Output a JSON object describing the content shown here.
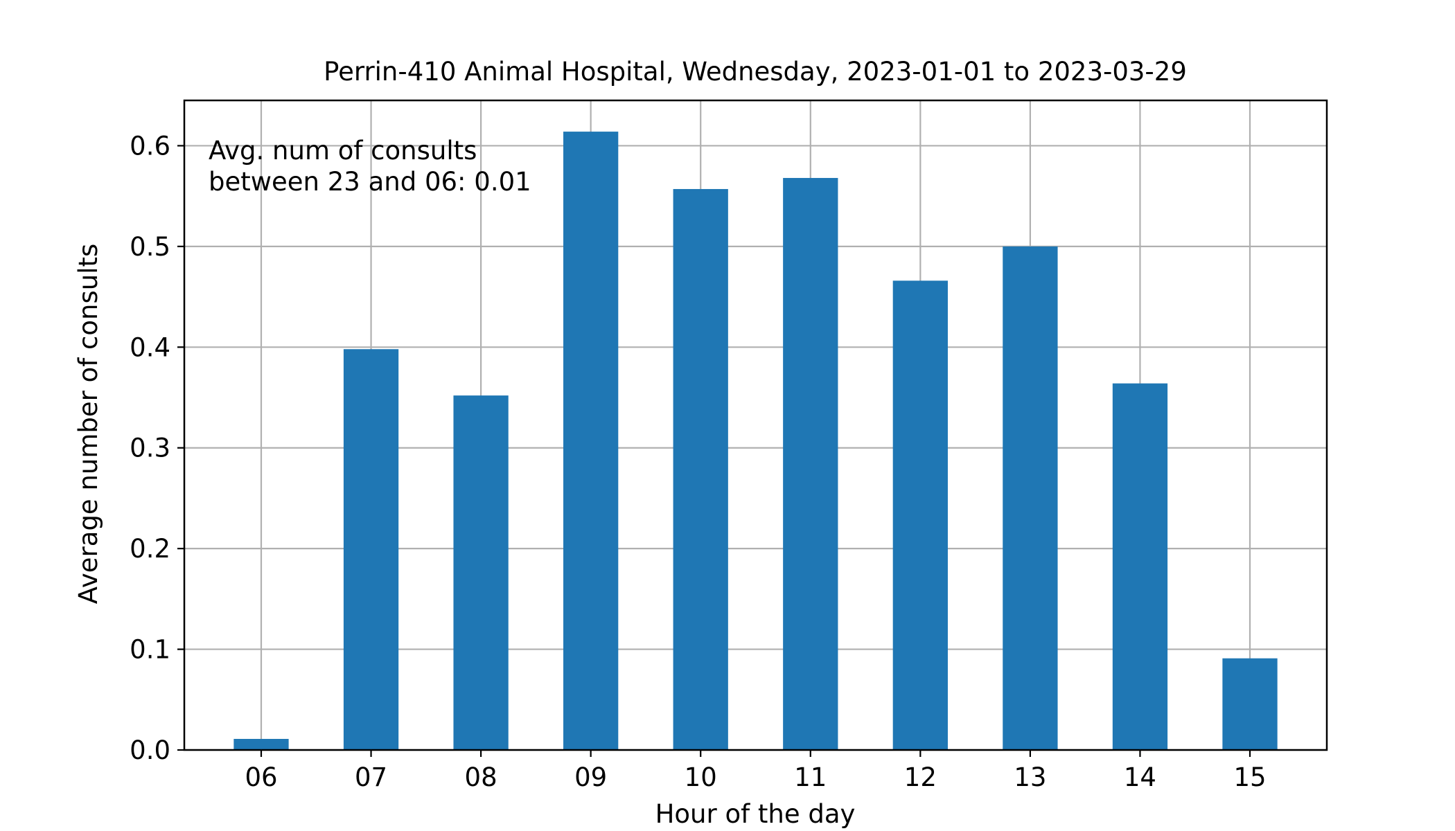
{
  "chart_data": {
    "type": "bar",
    "title": "Perrin-410 Animal Hospital, Wednesday, 2023-01-01 to 2023-03-29",
    "xlabel": "Hour of the day",
    "ylabel": "Average number of consults",
    "categories": [
      "06",
      "07",
      "08",
      "09",
      "10",
      "11",
      "12",
      "13",
      "14",
      "15"
    ],
    "values": [
      0.011,
      0.398,
      0.352,
      0.614,
      0.557,
      0.568,
      0.466,
      0.5,
      0.364,
      0.091
    ],
    "ylim": [
      0,
      0.645
    ],
    "yticks": [
      0.0,
      0.1,
      0.2,
      0.3,
      0.4,
      0.5,
      0.6
    ],
    "ytick_labels": [
      "0.0",
      "0.1",
      "0.2",
      "0.3",
      "0.4",
      "0.5",
      "0.6"
    ],
    "grid": true,
    "bar_color": "#1f77b4",
    "annotation": {
      "line1": "Avg. num of consults",
      "line2": "between 23 and 06: 0.01"
    }
  }
}
